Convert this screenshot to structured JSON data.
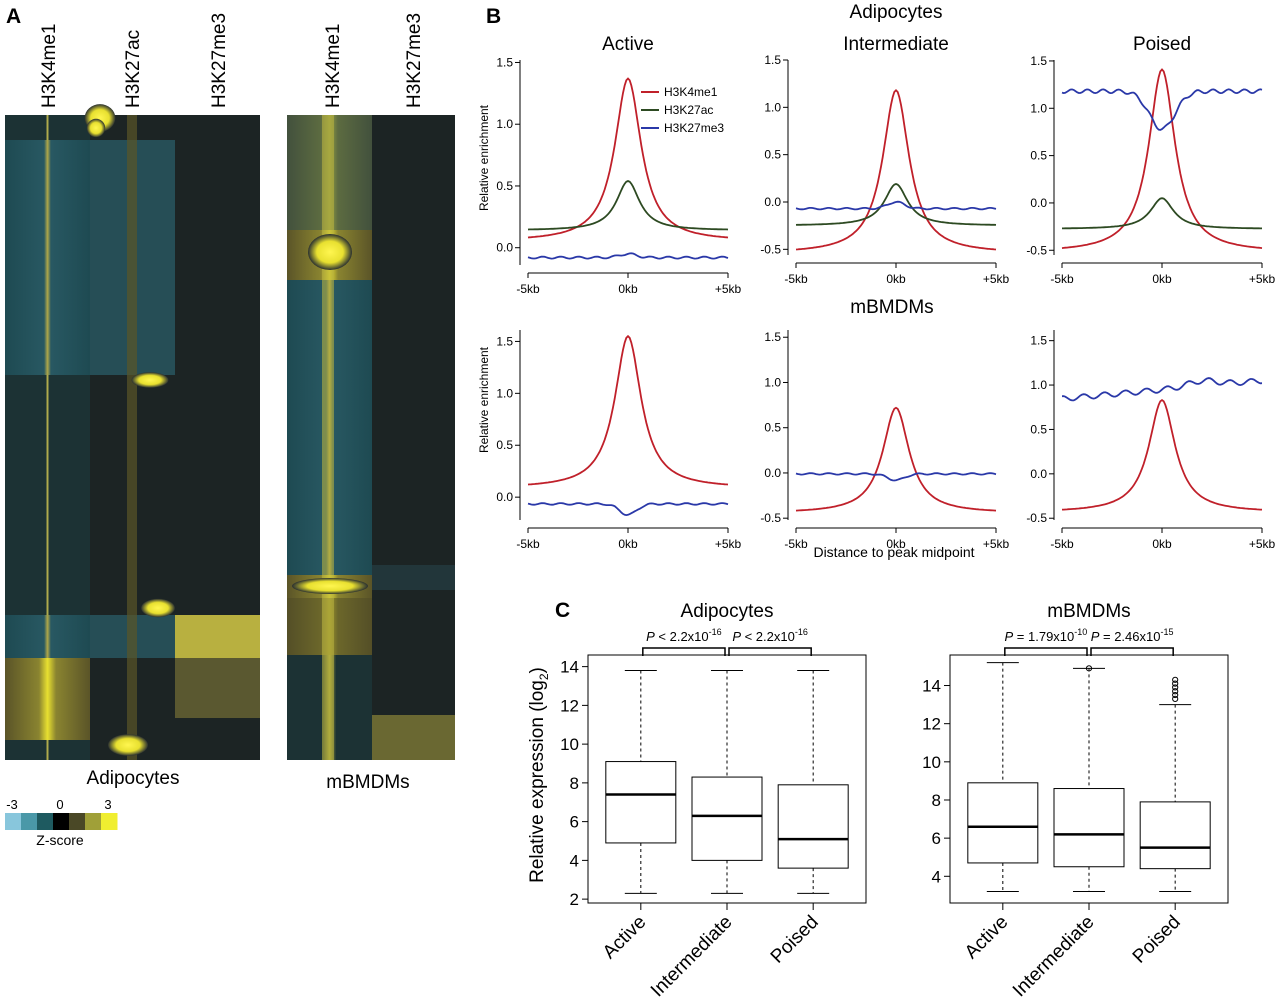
{
  "panels": {
    "a": "A",
    "b": "B",
    "c": "C"
  },
  "heatmaps": [
    {
      "cell_type": "Adipocytes",
      "columns": [
        "H3K4me1",
        "H3K27ac",
        "H3K27me3"
      ]
    },
    {
      "cell_type": "mBMDMs",
      "columns": [
        "H3K4me1",
        "H3K27me3"
      ]
    }
  ],
  "colorbar": {
    "label": "Z-score",
    "ticks": [
      "-3",
      "0",
      "3"
    ],
    "colors": [
      "#88c6dc",
      "#4a98a8",
      "#1e5a60",
      "#000000",
      "#4a4826",
      "#a0a038",
      "#f0ee30"
    ]
  },
  "panel_b": {
    "top_title": "Adipocytes",
    "bottom_title": "mBMDMs",
    "ylabel": "Relative enrichment",
    "xlabel": "Distance to peak midpoint",
    "legend": [
      "H3K4me1",
      "H3K27ac",
      "H3K27me3"
    ],
    "colors": {
      "H3K4me1": "#c0202a",
      "H3K27ac": "#2d4a22",
      "H3K27me3": "#2a38a8"
    }
  },
  "panel_c": {
    "ylabel_main": "Relative expression (log",
    "ylabel_sub": "2",
    "ylabel_end": ")"
  },
  "chart_data": [
    {
      "type": "line",
      "cell_type": "Adipocytes",
      "title": "Active",
      "x": [
        "-5kb",
        "0kb",
        "+5kb"
      ],
      "ylim": [
        -0.1,
        1.5
      ],
      "yticks": [
        "0.0",
        "0.5",
        "1.0",
        "1.5"
      ],
      "series": [
        {
          "name": "H3K4me1",
          "values": [
            0.05,
            1.37,
            0.05
          ]
        },
        {
          "name": "H3K27ac",
          "values": [
            0.14,
            0.54,
            0.14
          ]
        },
        {
          "name": "H3K27me3",
          "values": [
            -0.08,
            -0.05,
            -0.08
          ]
        }
      ]
    },
    {
      "type": "line",
      "cell_type": "Adipocytes",
      "title": "Intermediate",
      "x": [
        "-5kb",
        "0kb",
        "+5kb"
      ],
      "ylim": [
        -0.55,
        1.55
      ],
      "yticks": [
        "-0.5",
        "0.0",
        "0.5",
        "1.0",
        "1.5"
      ],
      "series": [
        {
          "name": "H3K4me1",
          "values": [
            -0.55,
            1.18,
            -0.54
          ]
        },
        {
          "name": "H3K27ac",
          "values": [
            -0.25,
            0.19,
            -0.25
          ]
        },
        {
          "name": "H3K27me3",
          "values": [
            -0.07,
            0.0,
            -0.07
          ]
        }
      ]
    },
    {
      "type": "line",
      "cell_type": "Adipocytes",
      "title": "Poised",
      "x": [
        "-5kb",
        "0kb",
        "+5kb"
      ],
      "ylim": [
        -0.55,
        1.55
      ],
      "yticks": [
        "-0.5",
        "0.0",
        "0.5",
        "1.0",
        "1.5"
      ],
      "series": [
        {
          "name": "H3K4me1",
          "values": [
            -0.52,
            1.41,
            -0.53
          ]
        },
        {
          "name": "H3K27ac",
          "values": [
            -0.28,
            0.05,
            -0.27
          ]
        },
        {
          "name": "H3K27me3",
          "values": [
            1.18,
            0.78,
            1.18
          ]
        }
      ]
    },
    {
      "type": "line",
      "cell_type": "mBMDMs",
      "title": "",
      "x": [
        "-5kb",
        "0kb",
        "+5kb"
      ],
      "ylim": [
        -0.2,
        1.6
      ],
      "yticks": [
        "0.0",
        "0.5",
        "1.0",
        "1.5"
      ],
      "series": [
        {
          "name": "H3K4me1",
          "values": [
            0.08,
            1.55,
            0.09
          ]
        },
        {
          "name": "H3K27me3",
          "values": [
            -0.07,
            -0.17,
            -0.06
          ]
        }
      ]
    },
    {
      "type": "line",
      "cell_type": "mBMDMs",
      "title": "",
      "x": [
        "-5kb",
        "0kb",
        "+5kb"
      ],
      "ylim": [
        -0.5,
        1.6
      ],
      "yticks": [
        "-0.5",
        "0.0",
        "0.5",
        "1.0",
        "1.5"
      ],
      "series": [
        {
          "name": "H3K4me1",
          "values": [
            -0.45,
            0.72,
            -0.44
          ]
        },
        {
          "name": "H3K27me3",
          "values": [
            -0.01,
            -0.08,
            -0.01
          ]
        }
      ]
    },
    {
      "type": "line",
      "cell_type": "mBMDMs",
      "title": "",
      "x": [
        "-5kb",
        "0kb",
        "+5kb"
      ],
      "ylim": [
        -0.5,
        1.6
      ],
      "yticks": [
        "-0.5",
        "0.0",
        "0.5",
        "1.0",
        "1.5"
      ],
      "series": [
        {
          "name": "H3K4me1",
          "values": [
            -0.44,
            0.83,
            -0.43
          ]
        },
        {
          "name": "H3K27me3",
          "values": [
            0.92,
            1.05,
            0.77
          ]
        }
      ]
    },
    {
      "type": "box",
      "title": "Adipocytes",
      "categories": [
        "Active",
        "Intermediate",
        "Poised"
      ],
      "ylim": [
        2,
        14
      ],
      "yticks": [
        "2",
        "4",
        "6",
        "8",
        "10",
        "12",
        "14"
      ],
      "boxes": [
        {
          "whisker_low": 2.3,
          "q1": 4.9,
          "median": 7.4,
          "q3": 9.1,
          "whisker_high": 13.8
        },
        {
          "whisker_low": 2.3,
          "q1": 4.0,
          "median": 6.3,
          "q3": 8.3,
          "whisker_high": 13.8
        },
        {
          "whisker_low": 2.3,
          "q1": 3.6,
          "median": 5.1,
          "q3": 7.9,
          "whisker_high": 13.8
        }
      ],
      "comparisons": [
        {
          "pre": "P",
          "op": " < 2.2x10",
          "exp": "-16"
        },
        {
          "pre": "P",
          "op": " < 2.2x10",
          "exp": "-16"
        }
      ]
    },
    {
      "type": "box",
      "title": "mBMDMs",
      "categories": [
        "Active",
        "Intermediate",
        "Poised"
      ],
      "ylim": [
        3,
        15
      ],
      "yticks": [
        "4",
        "6",
        "8",
        "10",
        "12",
        "14"
      ],
      "boxes": [
        {
          "whisker_low": 3.2,
          "q1": 4.7,
          "median": 6.6,
          "q3": 8.9,
          "whisker_high": 15.2
        },
        {
          "whisker_low": 3.2,
          "q1": 4.5,
          "median": 6.2,
          "q3": 8.6,
          "whisker_high": 14.9
        },
        {
          "whisker_low": 3.2,
          "q1": 4.4,
          "median": 5.5,
          "q3": 7.9,
          "whisker_high": 13.0
        }
      ],
      "outliers": [
        {
          "box": 1,
          "values": [
            14.9
          ]
        },
        {
          "box": 2,
          "values": [
            13.3,
            13.5,
            13.7,
            13.9,
            14.1,
            14.3
          ]
        }
      ],
      "comparisons": [
        {
          "pre": "P",
          "op": " = 1.79x10",
          "exp": "-10"
        },
        {
          "pre": "P",
          "op": " = 2.46x10",
          "exp": "-15"
        }
      ]
    }
  ]
}
